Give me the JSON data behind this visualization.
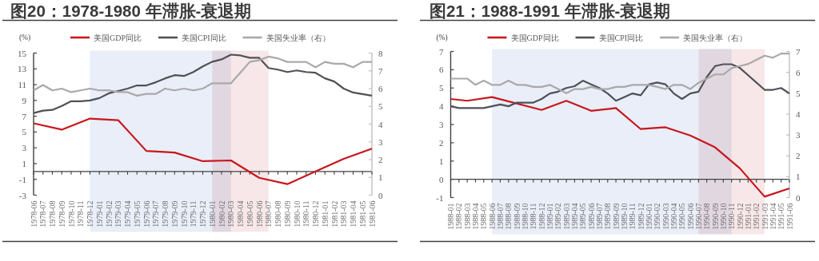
{
  "chart_data": [
    {
      "type": "line",
      "title": "图20：1978-1980 年滞胀-衰退期",
      "ylabel": "(%)",
      "legend": "top",
      "grid": false,
      "x": [
        "1978-06",
        "1978-07",
        "1978-08",
        "1978-09",
        "1978-10",
        "1978-11",
        "1978-12",
        "1979-01",
        "1979-02",
        "1979-03",
        "1979-04",
        "1979-05",
        "1979-06",
        "1979-07",
        "1979-08",
        "1979-09",
        "1979-10",
        "1979-11",
        "1979-12",
        "1980-01",
        "1980-02",
        "1980-03",
        "1980-04",
        "1980-05",
        "1980-06",
        "1980-07",
        "1980-08",
        "1980-09",
        "1980-10",
        "1980-11",
        "1980-12",
        "1981-01",
        "1981-02",
        "1981-03",
        "1981-04",
        "1981-05",
        "1981-06"
      ],
      "xlim": [
        "1978-06",
        "1981-06"
      ],
      "xticks": [
        "1978-06",
        "1978-07",
        "1978-08",
        "1978-09",
        "1978-10",
        "1978-11",
        "1978-12",
        "1979-01",
        "1979-02",
        "1979-03",
        "1979-04",
        "1979-05",
        "1979-06",
        "1979-07",
        "1979-08",
        "1979-09",
        "1979-10",
        "1979-11",
        "1979-12",
        "1980-01",
        "1980-02",
        "1980-03",
        "1980-04",
        "1980-05",
        "1980-06",
        "1980-07",
        "1980-08",
        "1980-09",
        "1980-10",
        "1980-11",
        "1980-12",
        "1981-01",
        "1981-02",
        "1981-03",
        "1981-04",
        "1981-05",
        "1981-06"
      ],
      "series": [
        {
          "name": "美国GDP同比",
          "color": "#c8161d",
          "x": [
            "1978-06",
            "1978-09",
            "1978-12",
            "1979-03",
            "1979-06",
            "1979-09",
            "1979-12",
            "1980-03",
            "1980-06",
            "1980-09",
            "1980-12",
            "1981-03",
            "1981-06"
          ],
          "values": [
            6.1,
            5.3,
            6.7,
            6.5,
            2.6,
            2.4,
            1.3,
            1.4,
            -0.8,
            -1.6,
            0.0,
            1.6,
            2.9
          ]
        },
        {
          "name": "美国CPI同比",
          "color": "#4f5157",
          "values": [
            7.4,
            7.7,
            7.8,
            8.3,
            8.9,
            8.9,
            9.0,
            9.3,
            9.9,
            10.2,
            10.5,
            10.9,
            10.9,
            11.3,
            11.8,
            12.2,
            12.1,
            12.6,
            13.3,
            13.9,
            14.2,
            14.8,
            14.7,
            14.4,
            14.4,
            13.1,
            12.9,
            12.6,
            12.8,
            12.6,
            12.5,
            11.8,
            11.4,
            10.5,
            10.0,
            9.8,
            9.6
          ]
        },
        {
          "name": "美国失业率（右）",
          "color": "#a9a9a9",
          "axis": "y2",
          "values": [
            5.9,
            6.2,
            5.9,
            6.0,
            5.8,
            5.9,
            6.0,
            5.9,
            5.9,
            5.8,
            5.8,
            5.6,
            5.7,
            5.7,
            6.0,
            5.9,
            6.0,
            5.9,
            6.0,
            6.3,
            6.3,
            6.3,
            6.9,
            7.5,
            7.6,
            7.8,
            7.7,
            7.5,
            7.5,
            7.5,
            7.2,
            7.5,
            7.4,
            7.4,
            7.2,
            7.5,
            7.5
          ]
        }
      ],
      "ylim": [
        -3,
        15
      ],
      "yticks": [
        -3,
        -1,
        1,
        3,
        5,
        7,
        9,
        11,
        13,
        15
      ],
      "y2lim": [
        0,
        8
      ],
      "y2ticks": [
        0,
        1,
        2,
        3,
        4,
        5,
        6,
        7,
        8
      ],
      "ref_lines": [
        {
          "axis": "y",
          "value": 0,
          "color": "#404040"
        }
      ],
      "bands": [
        {
          "axis": "x",
          "from": "1978-12",
          "to": "1980-03",
          "color": "#e9eef8"
        },
        {
          "axis": "x",
          "from": "1980-01",
          "to": "1980-07",
          "color": "#f7e7e8"
        }
      ]
    },
    {
      "type": "line",
      "title": "图21：1988-1991 年滞胀-衰退期",
      "ylabel": "(%)",
      "legend": "top",
      "grid": false,
      "x": [
        "1988-01",
        "1988-02",
        "1988-03",
        "1988-04",
        "1988-05",
        "1988-06",
        "1988-07",
        "1988-08",
        "1988-09",
        "1988-10",
        "1988-11",
        "1988-12",
        "1989-01",
        "1989-02",
        "1989-03",
        "1989-04",
        "1989-05",
        "1989-06",
        "1989-07",
        "1989-08",
        "1989-09",
        "1989-10",
        "1989-11",
        "1989-12",
        "1990-01",
        "1990-02",
        "1990-03",
        "1990-04",
        "1990-05",
        "1990-06",
        "1990-07",
        "1990-08",
        "1990-09",
        "1990-10",
        "1990-11",
        "1990-12",
        "1991-01",
        "1991-02",
        "1991-03",
        "1991-04",
        "1991-05",
        "1991-06"
      ],
      "xlim": [
        "1988-01",
        "1991-06"
      ],
      "xticks": [
        "1988-01",
        "1988-02",
        "1988-03",
        "1988-04",
        "1988-05",
        "1988-06",
        "1988-07",
        "1988-08",
        "1988-09",
        "1988-10",
        "1988-11",
        "1988-12",
        "1989-01",
        "1989-02",
        "1989-03",
        "1989-04",
        "1989-05",
        "1989-06",
        "1989-07",
        "1989-08",
        "1989-09",
        "1989-10",
        "1989-11",
        "1989-12",
        "1990-01",
        "1990-02",
        "1990-03",
        "1990-04",
        "1990-05",
        "1990-06",
        "1990-07",
        "1990-08",
        "1990-09",
        "1990-10",
        "1990-11",
        "1990-12",
        "1991-01",
        "1991-02",
        "1991-03",
        "1991-04",
        "1991-05",
        "1991-06"
      ],
      "series": [
        {
          "name": "美国GDP同比",
          "color": "#c8161d",
          "x": [
            "1988-01",
            "1988-03",
            "1988-06",
            "1988-12",
            "1989-03",
            "1989-06",
            "1989-09",
            "1989-12",
            "1990-03",
            "1990-06",
            "1990-09",
            "1990-12",
            "1991-03",
            "1991-06"
          ],
          "values": [
            4.4,
            4.3,
            4.5,
            3.8,
            4.3,
            3.75,
            3.9,
            2.75,
            2.85,
            2.4,
            1.75,
            0.6,
            -0.95,
            -0.5
          ]
        },
        {
          "name": "美国CPI同比",
          "color": "#4f5157",
          "values": [
            4.0,
            3.9,
            3.9,
            3.9,
            3.9,
            4.0,
            4.1,
            4.0,
            4.2,
            4.2,
            4.2,
            4.4,
            4.7,
            4.8,
            5.0,
            5.1,
            5.4,
            5.2,
            5.0,
            4.7,
            4.3,
            4.5,
            4.7,
            4.6,
            5.2,
            5.3,
            5.2,
            4.7,
            4.4,
            4.7,
            4.8,
            5.6,
            6.2,
            6.3,
            6.3,
            6.1,
            5.7,
            5.3,
            4.9,
            4.9,
            5.0,
            4.7
          ]
        },
        {
          "name": "美国失业率（右）",
          "color": "#a9a9a9",
          "axis": "y2",
          "values": [
            5.7,
            5.7,
            5.7,
            5.4,
            5.6,
            5.4,
            5.4,
            5.6,
            5.4,
            5.4,
            5.3,
            5.3,
            5.4,
            5.2,
            5.0,
            5.2,
            5.2,
            5.3,
            5.2,
            5.2,
            5.3,
            5.3,
            5.4,
            5.4,
            5.4,
            5.3,
            5.2,
            5.4,
            5.4,
            5.2,
            5.5,
            5.7,
            5.9,
            5.9,
            6.2,
            6.3,
            6.4,
            6.6,
            6.8,
            6.7,
            6.9,
            6.9
          ]
        }
      ],
      "ylim": [
        -1,
        7
      ],
      "yticks": [
        -1,
        0,
        1,
        2,
        3,
        4,
        5,
        6,
        7
      ],
      "y2lim": [
        0,
        7
      ],
      "y2ticks": [
        0,
        1,
        2,
        3,
        4,
        5,
        6,
        7
      ],
      "ref_lines": [
        {
          "axis": "y",
          "value": 0,
          "color": "#404040"
        }
      ],
      "bands": [
        {
          "axis": "x",
          "from": "1988-06",
          "to": "1990-11",
          "color": "#e9eef8"
        },
        {
          "axis": "x",
          "from": "1990-07",
          "to": "1991-03",
          "color": "#f7e7e8"
        }
      ]
    }
  ]
}
